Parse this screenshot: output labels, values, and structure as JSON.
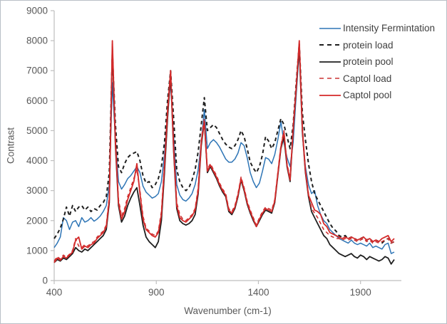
{
  "figure": {
    "background_color": "#ffffff",
    "border_color": "#b9c0c7",
    "axis_line_color": "#bfbfbf",
    "tick_label_color": "#595959"
  },
  "chart_data": {
    "type": "line",
    "title": "",
    "xlabel": "Wavenumber (cm-1)",
    "ylabel": "Contrast",
    "xlim": [
      400,
      2100
    ],
    "ylim": [
      0,
      9000
    ],
    "x_ticks": [
      400,
      900,
      1400,
      1900
    ],
    "y_ticks": [
      0,
      1000,
      2000,
      3000,
      4000,
      5000,
      6000,
      7000,
      8000,
      9000
    ],
    "grid": false,
    "legend_position": "upper right",
    "x": [
      400,
      415,
      430,
      445,
      460,
      475,
      490,
      505,
      520,
      535,
      550,
      565,
      580,
      595,
      610,
      625,
      640,
      655,
      670,
      685,
      700,
      715,
      730,
      745,
      760,
      775,
      790,
      805,
      820,
      835,
      850,
      865,
      880,
      895,
      910,
      925,
      940,
      955,
      970,
      985,
      1000,
      1015,
      1030,
      1045,
      1060,
      1075,
      1090,
      1105,
      1120,
      1135,
      1150,
      1165,
      1180,
      1195,
      1210,
      1225,
      1240,
      1255,
      1270,
      1285,
      1300,
      1315,
      1330,
      1345,
      1360,
      1375,
      1390,
      1405,
      1420,
      1435,
      1450,
      1465,
      1480,
      1495,
      1510,
      1525,
      1540,
      1555,
      1570,
      1585,
      1600,
      1615,
      1630,
      1645,
      1660,
      1675,
      1690,
      1705,
      1720,
      1735,
      1750,
      1765,
      1780,
      1795,
      1810,
      1825,
      1840,
      1855,
      1870,
      1885,
      1900,
      1915,
      1930,
      1945,
      1960,
      1975,
      1990,
      2005,
      2020,
      2035,
      2050,
      2065
    ],
    "series": [
      {
        "name": "Intensity Fermintation",
        "color": "#2e75b6",
        "dash": "solid",
        "width": 1.5,
        "values": [
          1100,
          1250,
          1450,
          2100,
          2000,
          1700,
          1950,
          2000,
          1800,
          2100,
          1950,
          2000,
          2100,
          1980,
          2050,
          2150,
          2300,
          2500,
          3200,
          6600,
          4700,
          3300,
          3050,
          3200,
          3400,
          3500,
          3650,
          3800,
          3600,
          3150,
          2950,
          2850,
          2750,
          2800,
          2900,
          3300,
          4200,
          5600,
          6600,
          4800,
          3200,
          2850,
          2700,
          2650,
          2750,
          2900,
          3200,
          3700,
          4600,
          5700,
          4400,
          4600,
          4700,
          4600,
          4450,
          4250,
          4050,
          3950,
          3950,
          4050,
          4250,
          4600,
          4500,
          4100,
          3600,
          3300,
          3100,
          3250,
          3650,
          4100,
          4050,
          3900,
          4200,
          4700,
          5300,
          4600,
          4100,
          3800,
          4600,
          6200,
          7700,
          4900,
          3800,
          3200,
          2900,
          3000,
          2500,
          2200,
          2000,
          1900,
          1700,
          1600,
          1500,
          1400,
          1350,
          1300,
          1250,
          1350,
          1250,
          1200,
          1250,
          1200,
          1150,
          1250,
          1100,
          1150,
          1100,
          1050,
          1200,
          1250,
          900,
          950
        ]
      },
      {
        "name": "protein load",
        "color": "#1f1f1f",
        "dash": "dashed",
        "width": 2,
        "values": [
          1400,
          1550,
          1750,
          2050,
          2450,
          2150,
          2500,
          2300,
          2450,
          2500,
          2350,
          2450,
          2300,
          2400,
          2350,
          2500,
          2600,
          2800,
          3600,
          7600,
          5200,
          3800,
          3600,
          3900,
          4100,
          4200,
          4250,
          4300,
          4000,
          3500,
          3250,
          3300,
          3100,
          3200,
          3400,
          3800,
          4600,
          6000,
          7000,
          5400,
          3700,
          3300,
          3100,
          3000,
          3100,
          3350,
          3700,
          4300,
          5200,
          6100,
          5000,
          5100,
          5200,
          5100,
          4900,
          4700,
          4550,
          4450,
          4400,
          4500,
          4700,
          5000,
          4800,
          4400,
          3950,
          3750,
          3600,
          3800,
          4200,
          4800,
          4650,
          4400,
          4600,
          5000,
          5400,
          5200,
          4800,
          4400,
          5200,
          6600,
          7900,
          5600,
          4700,
          3900,
          3300,
          2900,
          2700,
          2500,
          2300,
          2100,
          1900,
          1750,
          1650,
          1500,
          1450,
          1500,
          1400,
          1450,
          1400,
          1350,
          1400,
          1450,
          1350,
          1400,
          1300,
          1350,
          1300,
          1250,
          1350,
          1400,
          1250,
          1300
        ]
      },
      {
        "name": "protein pool",
        "color": "#1f1f1f",
        "dash": "solid",
        "width": 1.8,
        "values": [
          600,
          700,
          650,
          750,
          700,
          800,
          900,
          1100,
          1000,
          950,
          1050,
          1000,
          1100,
          1200,
          1300,
          1400,
          1500,
          1700,
          2600,
          7800,
          4500,
          2500,
          1950,
          2150,
          2500,
          2750,
          2950,
          3100,
          2500,
          1850,
          1450,
          1300,
          1200,
          1100,
          1300,
          2000,
          3600,
          5400,
          6900,
          4300,
          2400,
          2000,
          1900,
          1850,
          1900,
          2000,
          2200,
          2900,
          4500,
          5300,
          3600,
          3800,
          3600,
          3400,
          3150,
          2950,
          2800,
          2300,
          2200,
          2400,
          2800,
          3350,
          3000,
          2550,
          2250,
          2000,
          1800,
          2000,
          2200,
          2350,
          2300,
          2250,
          2600,
          3500,
          4400,
          4800,
          3800,
          3300,
          5000,
          6400,
          7800,
          5000,
          3600,
          2800,
          2300,
          2100,
          1900,
          1700,
          1500,
          1400,
          1200,
          1100,
          1000,
          900,
          850,
          800,
          850,
          900,
          800,
          750,
          850,
          800,
          700,
          800,
          750,
          700,
          650,
          700,
          800,
          750,
          550,
          700
        ]
      },
      {
        "name": "Captol load",
        "color": "#cc3333",
        "dash": "dashed",
        "width": 1.6,
        "values": [
          650,
          800,
          720,
          850,
          780,
          880,
          1000,
          1400,
          1150,
          1100,
          1200,
          1150,
          1250,
          1300,
          1450,
          1550,
          1650,
          1850,
          2800,
          7900,
          4700,
          2700,
          2150,
          2400,
          2800,
          3100,
          3400,
          3700,
          3000,
          2150,
          1750,
          1650,
          1550,
          1500,
          1650,
          2300,
          3900,
          5700,
          6950,
          4500,
          2600,
          2200,
          2050,
          2000,
          2100,
          2200,
          2400,
          3100,
          4700,
          5400,
          3700,
          3900,
          3700,
          3500,
          3250,
          3050,
          2900,
          2400,
          2300,
          2500,
          2900,
          3450,
          3100,
          2650,
          2350,
          2100,
          1850,
          2100,
          2300,
          2450,
          2400,
          2350,
          2700,
          3600,
          4500,
          5000,
          3900,
          3400,
          5100,
          6500,
          7900,
          5100,
          3700,
          2900,
          2400,
          2250,
          2100,
          1900,
          1700,
          1600,
          1500,
          1450,
          1400,
          1400,
          1350,
          1400,
          1350,
          1400,
          1350,
          1300,
          1350,
          1400,
          1300,
          1350,
          1250,
          1300,
          1250,
          1300,
          1350,
          1400,
          1250,
          1300
        ]
      },
      {
        "name": "Captol pool",
        "color": "#d42a2a",
        "dash": "solid",
        "width": 1.8,
        "values": [
          600,
          750,
          680,
          800,
          750,
          850,
          950,
          1350,
          1450,
          1050,
          1150,
          1100,
          1200,
          1250,
          1400,
          1500,
          1600,
          1800,
          2700,
          8000,
          4600,
          2600,
          2050,
          2300,
          2700,
          3000,
          3300,
          3900,
          2900,
          2050,
          1700,
          1600,
          1500,
          1450,
          1600,
          2200,
          3800,
          5600,
          7000,
          4400,
          2500,
          2100,
          2000,
          1950,
          2050,
          2150,
          2350,
          3000,
          4600,
          5300,
          3650,
          3850,
          3650,
          3450,
          3200,
          3000,
          2850,
          2350,
          2250,
          2450,
          2850,
          3400,
          3050,
          2600,
          2300,
          2050,
          1800,
          2050,
          2250,
          2400,
          2350,
          2300,
          2650,
          3550,
          4450,
          4950,
          3850,
          3350,
          5050,
          6450,
          8000,
          5050,
          3650,
          2850,
          2600,
          2350,
          2300,
          2200,
          1900,
          1800,
          1600,
          1550,
          1500,
          1450,
          1400,
          1450,
          1400,
          1450,
          1400,
          1350,
          1400,
          1450,
          1350,
          1400,
          1300,
          1350,
          1300,
          1400,
          1450,
          1500,
          1300,
          1400
        ]
      }
    ]
  }
}
